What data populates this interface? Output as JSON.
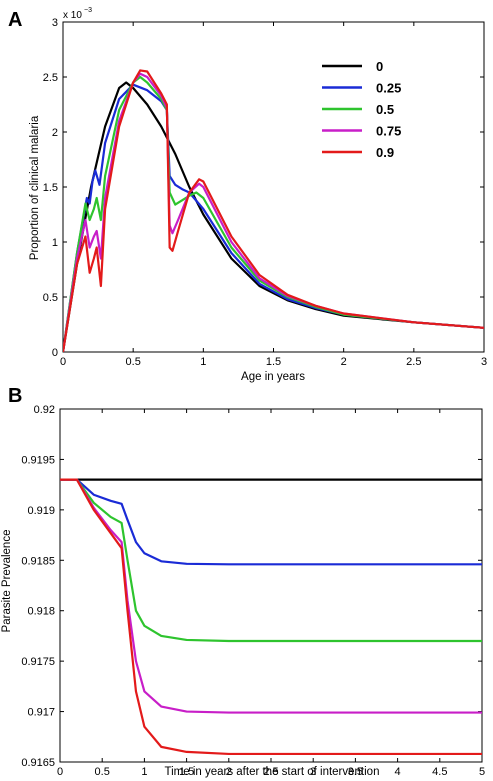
{
  "chart_data": [
    {
      "panel": "A",
      "type": "line",
      "xlabel": "Age in years",
      "ylabel": "Proportion of clinical malaria",
      "y_multiplier": "x 10",
      "y_multiplier_exponent": "−3",
      "xlim": [
        0,
        3
      ],
      "ylim": [
        0,
        3
      ],
      "x_scale_factor": 0.001,
      "xticks": [
        0,
        0.5,
        1,
        1.5,
        2,
        2.5,
        3
      ],
      "yticks": [
        0,
        0.5,
        1,
        1.5,
        2,
        2.5,
        3
      ],
      "legend_position": "upper-right",
      "series": [
        {
          "name": "0",
          "color": "#000000",
          "points": [
            [
              0,
              0
            ],
            [
              0.1,
              0.8
            ],
            [
              0.2,
              1.5
            ],
            [
              0.3,
              2.05
            ],
            [
              0.4,
              2.4
            ],
            [
              0.45,
              2.45
            ],
            [
              0.5,
              2.4
            ],
            [
              0.6,
              2.25
            ],
            [
              0.7,
              2.05
            ],
            [
              0.8,
              1.8
            ],
            [
              0.9,
              1.5
            ],
            [
              1.0,
              1.25
            ],
            [
              1.2,
              0.85
            ],
            [
              1.4,
              0.6
            ],
            [
              1.6,
              0.47
            ],
            [
              1.8,
              0.39
            ],
            [
              2.0,
              0.33
            ],
            [
              2.5,
              0.27
            ],
            [
              3.0,
              0.22
            ]
          ]
        },
        {
          "name": "0.25",
          "color": "#1a2bd6",
          "points": [
            [
              0,
              0
            ],
            [
              0.1,
              0.9
            ],
            [
              0.17,
              1.4
            ],
            [
              0.19,
              1.35
            ],
            [
              0.21,
              1.55
            ],
            [
              0.23,
              1.65
            ],
            [
              0.26,
              1.52
            ],
            [
              0.3,
              1.9
            ],
            [
              0.4,
              2.3
            ],
            [
              0.5,
              2.43
            ],
            [
              0.6,
              2.38
            ],
            [
              0.7,
              2.28
            ],
            [
              0.74,
              2.2
            ],
            [
              0.76,
              1.6
            ],
            [
              0.8,
              1.52
            ],
            [
              0.85,
              1.48
            ],
            [
              0.9,
              1.45
            ],
            [
              1.0,
              1.3
            ],
            [
              1.2,
              0.9
            ],
            [
              1.4,
              0.62
            ],
            [
              1.6,
              0.48
            ],
            [
              1.8,
              0.4
            ],
            [
              2.0,
              0.34
            ],
            [
              2.5,
              0.27
            ],
            [
              3.0,
              0.22
            ]
          ]
        },
        {
          "name": "0.5",
          "color": "#2ec42e",
          "points": [
            [
              0,
              0
            ],
            [
              0.1,
              0.9
            ],
            [
              0.16,
              1.35
            ],
            [
              0.19,
              1.2
            ],
            [
              0.22,
              1.3
            ],
            [
              0.24,
              1.4
            ],
            [
              0.27,
              1.2
            ],
            [
              0.3,
              1.6
            ],
            [
              0.4,
              2.2
            ],
            [
              0.5,
              2.45
            ],
            [
              0.55,
              2.5
            ],
            [
              0.6,
              2.45
            ],
            [
              0.7,
              2.3
            ],
            [
              0.74,
              2.2
            ],
            [
              0.76,
              1.45
            ],
            [
              0.8,
              1.34
            ],
            [
              0.85,
              1.38
            ],
            [
              0.9,
              1.42
            ],
            [
              0.95,
              1.45
            ],
            [
              1.0,
              1.4
            ],
            [
              1.2,
              0.95
            ],
            [
              1.4,
              0.65
            ],
            [
              1.6,
              0.5
            ],
            [
              1.8,
              0.41
            ],
            [
              2.0,
              0.34
            ],
            [
              2.5,
              0.27
            ],
            [
              3.0,
              0.22
            ]
          ]
        },
        {
          "name": "0.75",
          "color": "#c81ec8",
          "points": [
            [
              0,
              0
            ],
            [
              0.1,
              0.85
            ],
            [
              0.16,
              1.2
            ],
            [
              0.19,
              0.95
            ],
            [
              0.22,
              1.05
            ],
            [
              0.24,
              1.1
            ],
            [
              0.27,
              0.85
            ],
            [
              0.3,
              1.4
            ],
            [
              0.4,
              2.1
            ],
            [
              0.5,
              2.45
            ],
            [
              0.55,
              2.53
            ],
            [
              0.6,
              2.5
            ],
            [
              0.7,
              2.33
            ],
            [
              0.74,
              2.22
            ],
            [
              0.76,
              1.15
            ],
            [
              0.78,
              1.08
            ],
            [
              0.82,
              1.2
            ],
            [
              0.9,
              1.45
            ],
            [
              0.97,
              1.53
            ],
            [
              1.0,
              1.5
            ],
            [
              1.2,
              1.0
            ],
            [
              1.4,
              0.67
            ],
            [
              1.6,
              0.51
            ],
            [
              1.8,
              0.42
            ],
            [
              2.0,
              0.35
            ],
            [
              2.5,
              0.27
            ],
            [
              3.0,
              0.22
            ]
          ]
        },
        {
          "name": "0.9",
          "color": "#e31a1a",
          "points": [
            [
              0,
              0
            ],
            [
              0.1,
              0.8
            ],
            [
              0.16,
              1.05
            ],
            [
              0.19,
              0.72
            ],
            [
              0.22,
              0.85
            ],
            [
              0.24,
              0.95
            ],
            [
              0.27,
              0.6
            ],
            [
              0.3,
              1.3
            ],
            [
              0.4,
              2.05
            ],
            [
              0.5,
              2.45
            ],
            [
              0.55,
              2.56
            ],
            [
              0.6,
              2.55
            ],
            [
              0.7,
              2.35
            ],
            [
              0.74,
              2.25
            ],
            [
              0.76,
              0.95
            ],
            [
              0.78,
              0.92
            ],
            [
              0.82,
              1.1
            ],
            [
              0.9,
              1.45
            ],
            [
              0.97,
              1.57
            ],
            [
              1.0,
              1.55
            ],
            [
              1.2,
              1.05
            ],
            [
              1.4,
              0.7
            ],
            [
              1.6,
              0.52
            ],
            [
              1.8,
              0.42
            ],
            [
              2.0,
              0.35
            ],
            [
              2.5,
              0.27
            ],
            [
              3.0,
              0.22
            ]
          ]
        }
      ]
    },
    {
      "panel": "B",
      "type": "line",
      "xlabel": "Time in years after the start of intervention",
      "ylabel": "Parasite Prevalence",
      "xlim": [
        0,
        5
      ],
      "ylim": [
        0.9165,
        0.92
      ],
      "xticks": [
        0,
        0.5,
        1,
        1.5,
        2,
        2.5,
        3,
        3.5,
        4,
        4.5,
        5
      ],
      "yticks": [
        0.9165,
        0.917,
        0.9175,
        0.918,
        0.9185,
        0.919,
        0.9195,
        0.92
      ],
      "tick_labels_y": [
        "0.9165",
        "0.917",
        "0.9175",
        "0.918",
        "0.9185",
        "0.919",
        "0.9195",
        "0.92"
      ],
      "series": [
        {
          "name": "0",
          "color": "#000000",
          "points": [
            [
              0,
              0.9193
            ],
            [
              5,
              0.9193
            ]
          ]
        },
        {
          "name": "0.25",
          "color": "#1a2bd6",
          "points": [
            [
              0,
              0.9193
            ],
            [
              0.2,
              0.9193
            ],
            [
              0.4,
              0.91915
            ],
            [
              0.6,
              0.91909
            ],
            [
              0.73,
              0.91906
            ],
            [
              0.8,
              0.9189
            ],
            [
              0.9,
              0.91868
            ],
            [
              1.0,
              0.91857
            ],
            [
              1.2,
              0.91849
            ],
            [
              1.5,
              0.918465
            ],
            [
              2.0,
              0.91846
            ],
            [
              3.0,
              0.91846
            ],
            [
              5.0,
              0.91846
            ]
          ]
        },
        {
          "name": "0.5",
          "color": "#2ec42e",
          "points": [
            [
              0,
              0.9193
            ],
            [
              0.2,
              0.9193
            ],
            [
              0.4,
              0.91907
            ],
            [
              0.6,
              0.91893
            ],
            [
              0.73,
              0.91887
            ],
            [
              0.8,
              0.9185
            ],
            [
              0.9,
              0.918
            ],
            [
              1.0,
              0.91785
            ],
            [
              1.2,
              0.91775
            ],
            [
              1.5,
              0.91771
            ],
            [
              2.0,
              0.9177
            ],
            [
              3.0,
              0.9177
            ],
            [
              5.0,
              0.9177
            ]
          ]
        },
        {
          "name": "0.75",
          "color": "#c81ec8",
          "points": [
            [
              0,
              0.9193
            ],
            [
              0.2,
              0.9193
            ],
            [
              0.4,
              0.91902
            ],
            [
              0.6,
              0.9188
            ],
            [
              0.73,
              0.91868
            ],
            [
              0.8,
              0.9181
            ],
            [
              0.9,
              0.9175
            ],
            [
              1.0,
              0.9172
            ],
            [
              1.2,
              0.91705
            ],
            [
              1.5,
              0.917
            ],
            [
              2.0,
              0.91699
            ],
            [
              3.0,
              0.91699
            ],
            [
              5.0,
              0.91699
            ]
          ]
        },
        {
          "name": "0.9",
          "color": "#e31a1a",
          "points": [
            [
              0,
              0.9193
            ],
            [
              0.2,
              0.9193
            ],
            [
              0.4,
              0.919
            ],
            [
              0.6,
              0.91877
            ],
            [
              0.73,
              0.91862
            ],
            [
              0.8,
              0.918
            ],
            [
              0.9,
              0.9172
            ],
            [
              1.0,
              0.91685
            ],
            [
              1.2,
              0.91665
            ],
            [
              1.5,
              0.9166
            ],
            [
              2.0,
              0.91658
            ],
            [
              3.0,
              0.91658
            ],
            [
              5.0,
              0.91658
            ]
          ]
        }
      ]
    }
  ],
  "tick_labels_A_x": [
    "0",
    "0.5",
    "1",
    "1.5",
    "2",
    "2.5",
    "3"
  ],
  "tick_labels_A_y": [
    "0",
    "0.5",
    "1",
    "1.5",
    "2",
    "2.5",
    "3"
  ],
  "tick_labels_B_x": [
    "0",
    "0.5",
    "1",
    "1.5",
    "2",
    "2.5",
    "3",
    "3.5",
    "4",
    "4.5",
    "5"
  ]
}
